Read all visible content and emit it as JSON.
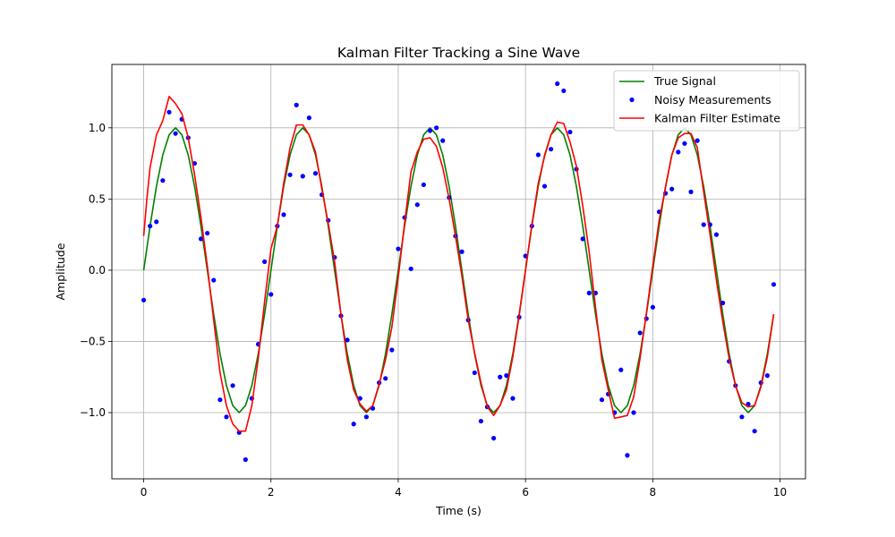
{
  "chart_data": {
    "type": "line",
    "title": "Kalman Filter Tracking a Sine Wave",
    "xlabel": "Time (s)",
    "ylabel": "Amplitude",
    "xlim": [
      -0.5,
      10.4
    ],
    "ylim": [
      -1.465,
      1.445
    ],
    "xticks": [
      0,
      2,
      4,
      6,
      8,
      10
    ],
    "yticks": [
      -1.0,
      -0.5,
      0.0,
      0.5,
      1.0
    ],
    "xtick_labels": [
      "0",
      "2",
      "4",
      "6",
      "8",
      "10"
    ],
    "ytick_labels": [
      "−1.0",
      "−0.5",
      "0.0",
      "0.5",
      "1.0"
    ],
    "grid": true,
    "legend_position": "top-right",
    "series": [
      {
        "name": "True Signal",
        "kind": "line",
        "color": "#008000",
        "x": [
          0.0,
          0.1,
          0.2,
          0.3,
          0.4,
          0.5,
          0.6,
          0.7,
          0.8,
          0.9,
          1.0,
          1.1,
          1.2,
          1.3,
          1.4,
          1.5,
          1.6,
          1.7,
          1.8,
          1.9,
          2.0,
          2.1,
          2.2,
          2.3,
          2.4,
          2.5,
          2.6,
          2.7,
          2.8,
          2.9,
          3.0,
          3.1,
          3.2,
          3.3,
          3.4,
          3.5,
          3.6,
          3.7,
          3.8,
          3.9,
          4.0,
          4.1,
          4.2,
          4.3,
          4.4,
          4.5,
          4.6,
          4.7,
          4.8,
          4.9,
          5.0,
          5.1,
          5.2,
          5.3,
          5.4,
          5.5,
          5.6,
          5.7,
          5.8,
          5.9,
          6.0,
          6.1,
          6.2,
          6.3,
          6.4,
          6.5,
          6.6,
          6.7,
          6.8,
          6.9,
          7.0,
          7.1,
          7.2,
          7.3,
          7.4,
          7.5,
          7.6,
          7.7,
          7.8,
          7.9,
          8.0,
          8.1,
          8.2,
          8.3,
          8.4,
          8.5,
          8.6,
          8.7,
          8.8,
          8.9,
          9.0,
          9.1,
          9.2,
          9.3,
          9.4,
          9.5,
          9.6,
          9.7,
          9.8,
          9.9
        ],
        "y": [
          0.0,
          0.309,
          0.588,
          0.809,
          0.951,
          1.0,
          0.951,
          0.809,
          0.588,
          0.309,
          0.0,
          -0.309,
          -0.588,
          -0.809,
          -0.951,
          -1.0,
          -0.951,
          -0.809,
          -0.588,
          -0.309,
          0.0,
          0.309,
          0.588,
          0.809,
          0.951,
          1.0,
          0.951,
          0.809,
          0.588,
          0.309,
          0.0,
          -0.309,
          -0.588,
          -0.809,
          -0.951,
          -1.0,
          -0.951,
          -0.809,
          -0.588,
          -0.309,
          0.0,
          0.309,
          0.588,
          0.809,
          0.951,
          1.0,
          0.951,
          0.809,
          0.588,
          0.309,
          0.0,
          -0.309,
          -0.588,
          -0.809,
          -0.951,
          -1.0,
          -0.951,
          -0.809,
          -0.588,
          -0.309,
          0.0,
          0.309,
          0.588,
          0.809,
          0.951,
          1.0,
          0.951,
          0.809,
          0.588,
          0.309,
          0.0,
          -0.309,
          -0.588,
          -0.809,
          -0.951,
          -1.0,
          -0.951,
          -0.809,
          -0.588,
          -0.309,
          0.0,
          0.309,
          0.588,
          0.809,
          0.951,
          1.0,
          0.951,
          0.809,
          0.588,
          0.309,
          0.0,
          -0.309,
          -0.588,
          -0.809,
          -0.951,
          -1.0,
          -0.951,
          -0.809,
          -0.588,
          -0.309
        ]
      },
      {
        "name": "Noisy Measurements",
        "kind": "scatter",
        "color": "#0000ff",
        "x": [
          0.0,
          0.1,
          0.2,
          0.3,
          0.4,
          0.5,
          0.6,
          0.7,
          0.8,
          0.9,
          1.0,
          1.1,
          1.2,
          1.3,
          1.4,
          1.5,
          1.6,
          1.7,
          1.8,
          1.9,
          2.0,
          2.1,
          2.2,
          2.3,
          2.4,
          2.5,
          2.6,
          2.7,
          2.8,
          2.9,
          3.0,
          3.1,
          3.2,
          3.3,
          3.4,
          3.5,
          3.6,
          3.7,
          3.8,
          3.9,
          4.0,
          4.1,
          4.2,
          4.3,
          4.4,
          4.5,
          4.6,
          4.7,
          4.8,
          4.9,
          5.0,
          5.1,
          5.2,
          5.3,
          5.4,
          5.5,
          5.6,
          5.7,
          5.8,
          5.9,
          6.0,
          6.1,
          6.2,
          6.3,
          6.4,
          6.5,
          6.6,
          6.7,
          6.8,
          6.9,
          7.0,
          7.1,
          7.2,
          7.3,
          7.4,
          7.5,
          7.6,
          7.7,
          7.8,
          7.9,
          8.0,
          8.1,
          8.2,
          8.3,
          8.4,
          8.5,
          8.6,
          8.7,
          8.8,
          8.9,
          9.0,
          9.1,
          9.2,
          9.3,
          9.4,
          9.5,
          9.6,
          9.7,
          9.8,
          9.9
        ],
        "y": [
          -0.21,
          0.31,
          0.34,
          0.63,
          1.11,
          0.96,
          1.06,
          0.93,
          0.75,
          0.22,
          0.26,
          -0.07,
          -0.91,
          -1.03,
          -0.81,
          -1.14,
          -1.33,
          -0.9,
          -0.52,
          0.06,
          -0.17,
          0.31,
          0.39,
          0.67,
          1.16,
          0.66,
          1.07,
          0.68,
          0.53,
          0.35,
          0.09,
          -0.32,
          -0.49,
          -1.08,
          -0.9,
          -1.03,
          -0.97,
          -0.79,
          -0.76,
          -0.56,
          0.15,
          0.37,
          0.01,
          0.46,
          0.6,
          0.98,
          1.0,
          0.91,
          0.51,
          0.24,
          0.13,
          -0.35,
          -0.72,
          -1.06,
          -0.96,
          -1.18,
          -0.75,
          -0.74,
          -0.9,
          -0.33,
          0.1,
          0.31,
          0.81,
          0.59,
          0.85,
          1.31,
          1.26,
          0.97,
          0.71,
          0.22,
          -0.16,
          -0.16,
          -0.91,
          -0.87,
          -1.0,
          -0.7,
          -1.3,
          -1.0,
          -0.44,
          -0.34,
          -0.26,
          0.41,
          0.54,
          0.57,
          0.83,
          0.89,
          0.55,
          0.91,
          0.32,
          0.32,
          0.25,
          -0.23,
          -0.64,
          -0.81,
          -1.03,
          -0.94,
          -1.13,
          -0.79,
          -0.74,
          -0.1
        ]
      },
      {
        "name": "Kalman Filter Estimate",
        "kind": "line",
        "color": "#ff0000",
        "x": [
          0.0,
          0.05,
          0.1,
          0.2,
          0.3,
          0.4,
          0.5,
          0.6,
          0.7,
          0.8,
          0.9,
          1.0,
          1.1,
          1.2,
          1.3,
          1.4,
          1.5,
          1.6,
          1.7,
          1.8,
          1.9,
          2.0,
          2.1,
          2.2,
          2.3,
          2.4,
          2.5,
          2.6,
          2.7,
          2.8,
          2.9,
          3.0,
          3.1,
          3.2,
          3.3,
          3.4,
          3.5,
          3.6,
          3.7,
          3.8,
          3.9,
          4.0,
          4.1,
          4.2,
          4.3,
          4.4,
          4.5,
          4.6,
          4.7,
          4.8,
          4.9,
          5.0,
          5.1,
          5.2,
          5.3,
          5.4,
          5.5,
          5.6,
          5.7,
          5.8,
          5.9,
          6.0,
          6.1,
          6.2,
          6.3,
          6.4,
          6.5,
          6.6,
          6.7,
          6.8,
          6.9,
          7.0,
          7.1,
          7.2,
          7.3,
          7.4,
          7.5,
          7.6,
          7.7,
          7.8,
          7.9,
          8.0,
          8.1,
          8.2,
          8.3,
          8.4,
          8.5,
          8.6,
          8.7,
          8.8,
          8.9,
          9.0,
          9.1,
          9.2,
          9.3,
          9.4,
          9.5,
          9.6,
          9.7,
          9.8,
          9.9
        ],
        "y": [
          0.24,
          0.5,
          0.72,
          0.95,
          1.05,
          1.22,
          1.17,
          1.1,
          0.93,
          0.67,
          0.37,
          0.03,
          -0.35,
          -0.72,
          -0.95,
          -1.08,
          -1.13,
          -1.13,
          -0.95,
          -0.62,
          -0.22,
          0.15,
          0.31,
          0.61,
          0.86,
          1.02,
          1.02,
          0.95,
          0.83,
          0.57,
          0.33,
          0.06,
          -0.31,
          -0.63,
          -0.84,
          -0.94,
          -0.99,
          -0.95,
          -0.8,
          -0.63,
          -0.4,
          -0.05,
          0.33,
          0.69,
          0.83,
          0.92,
          0.93,
          0.87,
          0.72,
          0.5,
          0.24,
          -0.04,
          -0.35,
          -0.58,
          -0.79,
          -0.96,
          -1.02,
          -0.95,
          -0.84,
          -0.61,
          -0.32,
          0.0,
          0.32,
          0.61,
          0.8,
          0.95,
          1.04,
          1.03,
          0.9,
          0.73,
          0.45,
          0.13,
          -0.26,
          -0.63,
          -0.84,
          -1.04,
          -1.03,
          -1.02,
          -0.89,
          -0.62,
          -0.3,
          0.03,
          0.35,
          0.58,
          0.81,
          0.93,
          0.96,
          0.96,
          0.86,
          0.55,
          0.25,
          -0.07,
          -0.36,
          -0.62,
          -0.81,
          -0.93,
          -0.96,
          -0.95,
          -0.82,
          -0.61,
          -0.31
        ]
      }
    ]
  }
}
